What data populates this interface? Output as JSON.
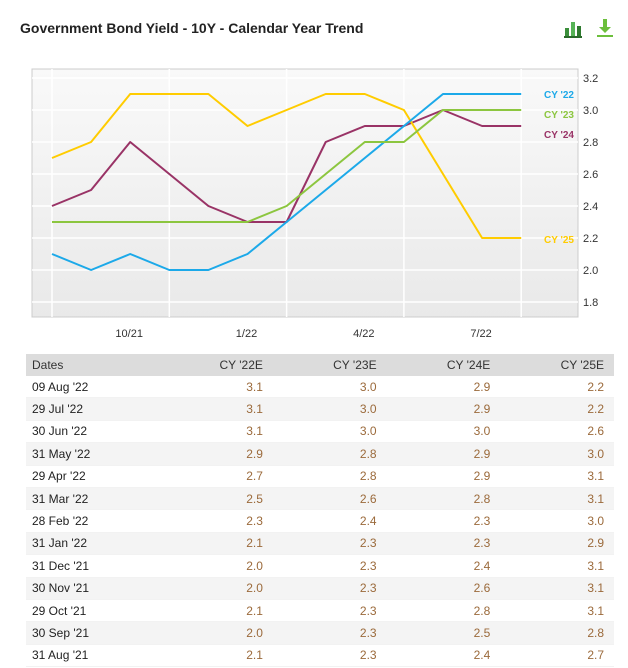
{
  "title": "Government Bond Yield - 10Y - Calendar Year Trend",
  "icons": {
    "chart": "bar-chart-icon",
    "download": "download-icon"
  },
  "chart_data": {
    "type": "line",
    "x": [
      "Aug '21",
      "Sep '21",
      "Oct '21",
      "Nov '21",
      "Dec '21",
      "Jan '22",
      "Feb '22",
      "Mar '22",
      "Apr '22",
      "May '22",
      "Jun '22",
      "Jul '22",
      "Aug '22"
    ],
    "x_tick_labels": [
      "10/21",
      "1/22",
      "4/22",
      "7/22"
    ],
    "y_ticks": [
      "3.2",
      "3.0",
      "2.8",
      "2.6",
      "2.4",
      "2.2",
      "2.0",
      "1.8"
    ],
    "ylim": [
      1.8,
      3.2
    ],
    "grid": true,
    "legend": "right-end labels",
    "series": [
      {
        "name": "CY '22",
        "color": "#1ca9e9",
        "values": [
          2.1,
          2.0,
          2.1,
          2.0,
          2.0,
          2.1,
          2.3,
          2.5,
          2.7,
          2.9,
          3.1,
          3.1,
          3.1
        ]
      },
      {
        "name": "CY '23",
        "color": "#8cc63f",
        "values": [
          2.3,
          2.3,
          2.3,
          2.3,
          2.3,
          2.3,
          2.4,
          2.6,
          2.8,
          2.8,
          3.0,
          3.0,
          3.0
        ]
      },
      {
        "name": "CY '24",
        "color": "#993366",
        "values": [
          2.4,
          2.5,
          2.8,
          2.6,
          2.4,
          2.3,
          2.3,
          2.8,
          2.9,
          2.9,
          3.0,
          2.9,
          2.9
        ]
      },
      {
        "name": "CY '25",
        "color": "#ffcc00",
        "values": [
          2.7,
          2.8,
          3.1,
          3.1,
          3.1,
          2.9,
          3.0,
          3.1,
          3.1,
          3.0,
          2.6,
          2.2,
          2.2
        ]
      }
    ]
  },
  "table": {
    "headers": [
      "Dates",
      "CY '22E",
      "CY '23E",
      "CY '24E",
      "CY '25E"
    ],
    "rows": [
      [
        "09 Aug '22",
        "3.1",
        "3.0",
        "2.9",
        "2.2"
      ],
      [
        "29 Jul '22",
        "3.1",
        "3.0",
        "2.9",
        "2.2"
      ],
      [
        "30 Jun '22",
        "3.1",
        "3.0",
        "3.0",
        "2.6"
      ],
      [
        "31 May '22",
        "2.9",
        "2.8",
        "2.9",
        "3.0"
      ],
      [
        "29 Apr '22",
        "2.7",
        "2.8",
        "2.9",
        "3.1"
      ],
      [
        "31 Mar '22",
        "2.5",
        "2.6",
        "2.8",
        "3.1"
      ],
      [
        "28 Feb '22",
        "2.3",
        "2.4",
        "2.3",
        "3.0"
      ],
      [
        "31 Jan '22",
        "2.1",
        "2.3",
        "2.3",
        "2.9"
      ],
      [
        "31 Dec '21",
        "2.0",
        "2.3",
        "2.4",
        "3.1"
      ],
      [
        "30 Nov '21",
        "2.0",
        "2.3",
        "2.6",
        "3.1"
      ],
      [
        "29 Oct '21",
        "2.1",
        "2.3",
        "2.8",
        "3.1"
      ],
      [
        "30 Sep '21",
        "2.0",
        "2.3",
        "2.5",
        "2.8"
      ],
      [
        "31 Aug '21",
        "2.1",
        "2.3",
        "2.4",
        "2.7"
      ]
    ]
  }
}
